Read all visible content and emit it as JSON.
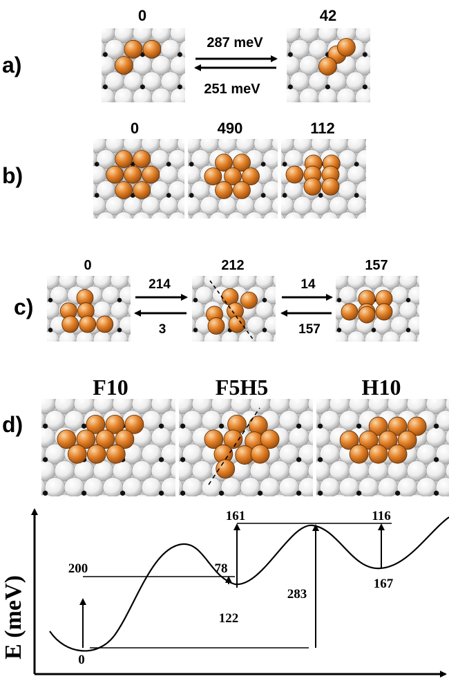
{
  "panels": {
    "a": {
      "label": "a)",
      "configs": [
        "0",
        "42"
      ],
      "forward_barrier": "287 meV",
      "backward_barrier": "251 meV"
    },
    "b": {
      "label": "b)",
      "configs": [
        "0",
        "490",
        "112"
      ]
    },
    "c": {
      "label": "c)",
      "configs": [
        "0",
        "212",
        "157"
      ],
      "barriers_1": {
        "forward": "214",
        "backward": "3"
      },
      "barriers_2": {
        "forward": "14",
        "backward": "157"
      }
    },
    "d": {
      "label": "d)",
      "configs": [
        "F10",
        "F5H5",
        "H10"
      ]
    }
  },
  "energy_diagram": {
    "ylabel": "E (meV)",
    "values": {
      "min_f10": "0",
      "barrier_200": "200",
      "barrier_78": "78",
      "min_f5h5": "122",
      "barrier_161": "161",
      "barrier_283": "283",
      "barrier_116": "116",
      "min_h10": "167"
    }
  },
  "colors": {
    "cluster_atom": "#e07a1c",
    "substrate_atom": "#e8e8e8",
    "hollow_site": "#111111"
  }
}
